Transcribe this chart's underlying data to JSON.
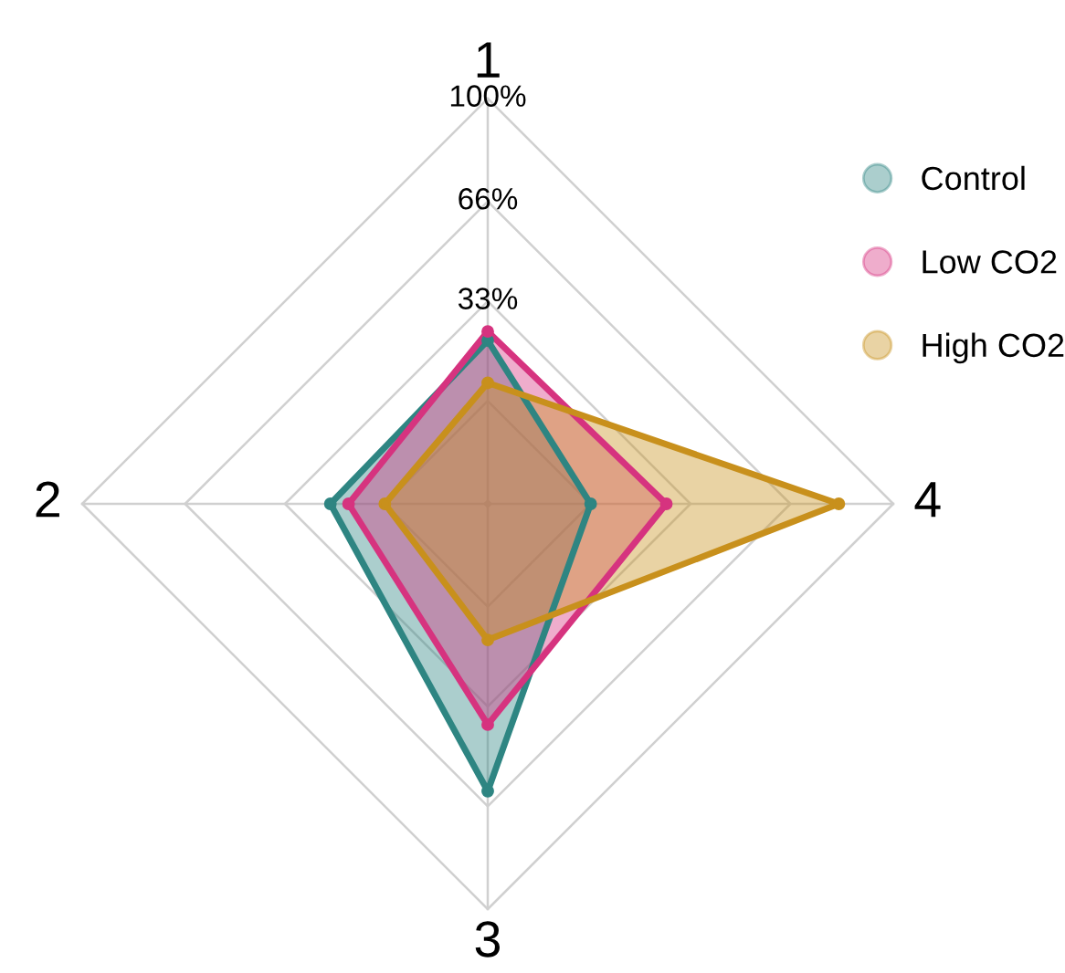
{
  "chart_data": {
    "type": "radar",
    "categories": [
      "1",
      "4",
      "3",
      "2"
    ],
    "ylim": [
      -34,
      100
    ],
    "yticks": [
      {
        "value": 33,
        "label": "33%"
      },
      {
        "value": 66,
        "label": "66%"
      },
      {
        "value": 100,
        "label": "100%"
      }
    ],
    "grid": true,
    "legend": "top right",
    "marker": "circle",
    "line_style": "solid",
    "series": [
      {
        "name": "Control",
        "color": "#2e8582",
        "values": [
          20,
          0,
          61,
          18
        ]
      },
      {
        "name": "Low CO2",
        "color": "#d6337f",
        "values": [
          23,
          25,
          39,
          12
        ]
      },
      {
        "name": "High CO2",
        "color": "#c8901c",
        "values": [
          6,
          82,
          11,
          0
        ]
      }
    ]
  }
}
